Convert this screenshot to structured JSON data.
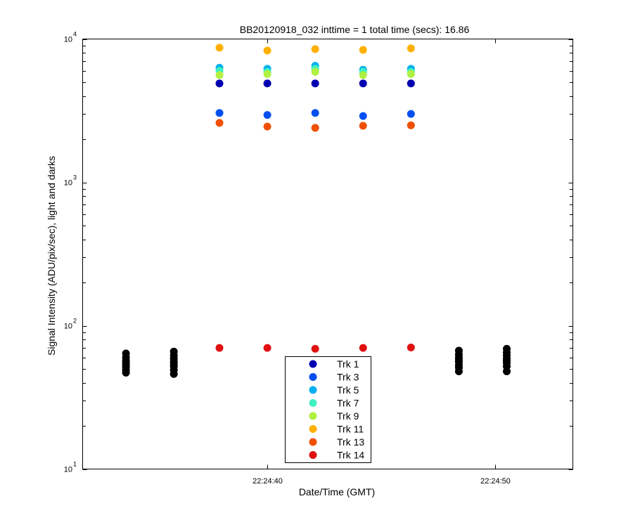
{
  "chart_data": {
    "type": "scatter",
    "title": "BB20120918_032 inttime = 1 total time (secs): 16.86",
    "xlabel": "Date/Time (GMT)",
    "ylabel": "Signal Intensity (ADU/pix/sec), light and darks",
    "y_scale": "log",
    "ylim": [
      10,
      10000
    ],
    "xlim": [
      "22:24:31.9",
      "22:24:53.4"
    ],
    "x_ticks": [
      "22:24:40",
      "22:24:50"
    ],
    "y_ticks": [
      {
        "base": "10",
        "exp": "1"
      },
      {
        "base": "10",
        "exp": "2"
      },
      {
        "base": "10",
        "exp": "3"
      },
      {
        "base": "10",
        "exp": "4"
      }
    ],
    "legend_position": "bottom-center",
    "grid": false,
    "series": [
      {
        "name": "Trk 1",
        "color": "#0000b0",
        "x": [
          "22:24:37.9",
          "22:24:40.0",
          "22:24:42.1",
          "22:24:44.2",
          "22:24:46.3"
        ],
        "values": [
          4900,
          4900,
          4900,
          4900,
          4900
        ]
      },
      {
        "name": "Trk 3",
        "color": "#0050f0",
        "x": [
          "22:24:37.9",
          "22:24:40.0",
          "22:24:42.1",
          "22:24:44.2",
          "22:24:46.3"
        ],
        "values": [
          3050,
          2950,
          3050,
          2900,
          3000
        ]
      },
      {
        "name": "Trk 5",
        "color": "#00b0f0",
        "x": [
          "22:24:37.9",
          "22:24:40.0",
          "22:24:42.1",
          "22:24:44.2",
          "22:24:46.3"
        ],
        "values": [
          6300,
          6200,
          6500,
          6100,
          6200
        ]
      },
      {
        "name": "Trk 7",
        "color": "#40f0c0",
        "x": [
          "22:24:37.9",
          "22:24:40.0",
          "22:24:42.1",
          "22:24:44.2",
          "22:24:46.3"
        ],
        "values": [
          6000,
          5900,
          6200,
          5900,
          5900
        ]
      },
      {
        "name": "Trk 9",
        "color": "#b0f040",
        "x": [
          "22:24:37.9",
          "22:24:40.0",
          "22:24:42.1",
          "22:24:44.2",
          "22:24:46.3"
        ],
        "values": [
          5600,
          5700,
          5900,
          5600,
          5700
        ]
      },
      {
        "name": "Trk 11",
        "color": "#ffb000",
        "x": [
          "22:24:37.9",
          "22:24:40.0",
          "22:24:42.1",
          "22:24:44.2",
          "22:24:46.3"
        ],
        "values": [
          8700,
          8300,
          8500,
          8400,
          8600
        ]
      },
      {
        "name": "Trk 13",
        "color": "#f05000",
        "x": [
          "22:24:37.9",
          "22:24:40.0",
          "22:24:42.1",
          "22:24:44.2",
          "22:24:46.3"
        ],
        "values": [
          2600,
          2450,
          2400,
          2480,
          2500
        ]
      },
      {
        "name": "Trk 14",
        "color": "#e01010",
        "x": [
          "22:24:37.9",
          "22:24:40.0",
          "22:24:42.1",
          "22:24:44.2",
          "22:24:46.3"
        ],
        "values": [
          70,
          70,
          69,
          70,
          70.5
        ]
      }
    ],
    "darks": {
      "color": "#000000",
      "x": [
        "22:24:33.8",
        "22:24:35.9",
        "22:24:48.4",
        "22:24:50.5"
      ],
      "values": [
        [
          64,
          60,
          57,
          55,
          53,
          51,
          49,
          47
        ],
        [
          66,
          62,
          59,
          56,
          54,
          52,
          49,
          46
        ],
        [
          67,
          63,
          60,
          58,
          56,
          53,
          51,
          48
        ],
        [
          69,
          65,
          62,
          59,
          57,
          55,
          52,
          48
        ]
      ]
    }
  }
}
